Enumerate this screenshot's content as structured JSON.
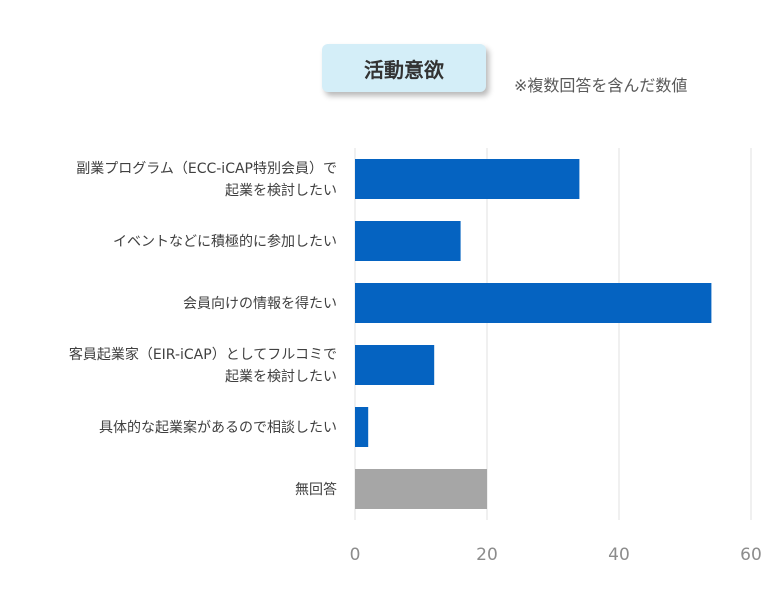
{
  "header": {
    "title": "活動意欲",
    "note": "※複数回答を含んだ数値"
  },
  "colors": {
    "bar": "#0563c1",
    "bar_no_answer": "#a6a6a6",
    "grid": "#e0e0e0",
    "title_box": "#d4eef8"
  },
  "chart_data": {
    "type": "bar",
    "orientation": "horizontal",
    "title": "活動意欲",
    "categories": [
      [
        "副業プログラム（ECC-iCAP特別会員）で",
        "起業を検討したい"
      ],
      [
        "イベントなどに積極的に参加したい"
      ],
      [
        "会員向けの情報を得たい"
      ],
      [
        "客員起業家（EIR-iCAP）としてフルコミで",
        "起業を検討したい"
      ],
      [
        "具体的な起業案があるので相談したい"
      ],
      [
        "無回答"
      ]
    ],
    "values": [
      34,
      16,
      54,
      12,
      2,
      20
    ],
    "xlim": [
      0,
      60
    ],
    "xticks": [
      "0",
      "20",
      "40",
      "60"
    ],
    "grid": true
  }
}
